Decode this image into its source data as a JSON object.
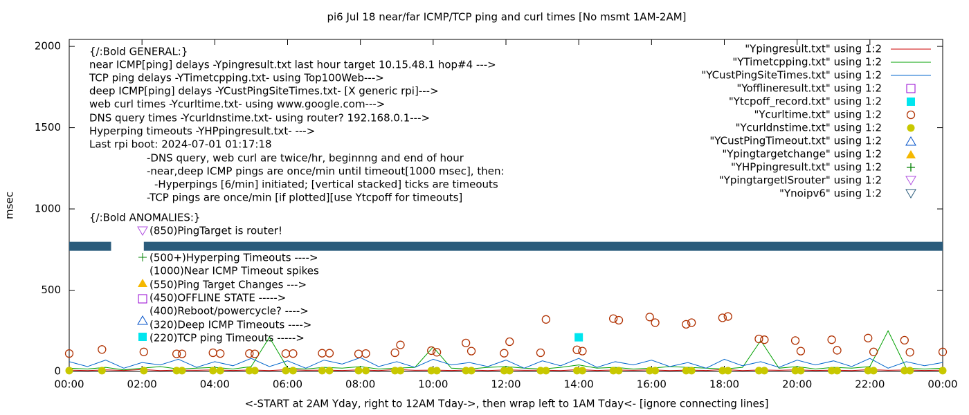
{
  "chart_data": {
    "type": "line",
    "title": "pi6 Jul 18  near/far ICMP/TCP ping and curl times [No msmt 1AM-2AM]",
    "xlabel": "<-START at 2AM Yday, right to 12AM Tday->, then wrap left to 1AM Tday<- [ignore connecting lines]",
    "ylabel": "msec",
    "xlim": [
      0,
      24
    ],
    "ylim": [
      0,
      2043
    ],
    "xticks": [
      {
        "value": 0,
        "label": "00:00"
      },
      {
        "value": 2,
        "label": "02:00"
      },
      {
        "value": 4,
        "label": "04:00"
      },
      {
        "value": 6,
        "label": "06:00"
      },
      {
        "value": 8,
        "label": "08:00"
      },
      {
        "value": 10,
        "label": "10:00"
      },
      {
        "value": 12,
        "label": "12:00"
      },
      {
        "value": 14,
        "label": "14:00"
      },
      {
        "value": 16,
        "label": "16:00"
      },
      {
        "value": 18,
        "label": "18:00"
      },
      {
        "value": 20,
        "label": "20:00"
      },
      {
        "value": 22,
        "label": "22:00"
      },
      {
        "value": 24,
        "label": "00:00"
      }
    ],
    "yticks": [
      0,
      500,
      1000,
      1500,
      2000
    ],
    "x": [
      0,
      0.5,
      1,
      1.5,
      2,
      2.5,
      3,
      3.5,
      4,
      4.5,
      5,
      5.5,
      6,
      6.5,
      7,
      7.5,
      8,
      8.5,
      9,
      9.5,
      10,
      10.5,
      11,
      11.5,
      12,
      12.5,
      13,
      13.5,
      14,
      14.5,
      15,
      15.5,
      16,
      16.5,
      17,
      17.5,
      18,
      18.5,
      19,
      19.5,
      20,
      20.5,
      21,
      21.5,
      22,
      22.5,
      23,
      23.5,
      24
    ],
    "series": [
      {
        "name": "\"Ypingresult.txt\" using 1:2",
        "color": "#cc0000",
        "style": "line",
        "values": [
          8,
          5,
          10,
          6,
          12,
          5,
          8,
          7,
          10,
          6,
          9,
          5,
          11,
          7,
          8,
          6,
          10,
          5,
          12,
          7,
          8,
          6,
          9,
          5,
          10,
          7,
          8,
          5,
          11,
          6,
          9,
          7,
          10,
          5,
          8,
          6,
          12,
          5,
          9,
          7,
          10,
          6,
          8,
          5,
          11,
          7,
          9,
          6,
          8
        ]
      },
      {
        "name": "\"YTimetcpping.txt\" using 1:2",
        "color": "#00a000",
        "style": "line",
        "values": [
          20,
          15,
          25,
          10,
          20,
          30,
          15,
          20,
          25,
          15,
          30,
          210,
          20,
          15,
          25,
          20,
          30,
          15,
          20,
          25,
          150,
          20,
          15,
          25,
          30,
          20,
          15,
          25,
          40,
          20,
          25,
          15,
          20,
          30,
          25,
          20,
          15,
          25,
          190,
          20,
          30,
          15,
          25,
          20,
          30,
          250,
          20,
          15,
          20
        ]
      },
      {
        "name": "\"YCustPingSiteTimes.txt\" using 1:2",
        "color": "#0066cc",
        "style": "line",
        "values": [
          60,
          30,
          70,
          20,
          55,
          40,
          75,
          25,
          60,
          35,
          80,
          30,
          65,
          20,
          70,
          45,
          85,
          30,
          60,
          25,
          75,
          40,
          55,
          30,
          70,
          20,
          65,
          35,
          80,
          25,
          60,
          40,
          70,
          30,
          55,
          20,
          75,
          35,
          60,
          25,
          70,
          40,
          65,
          30,
          80,
          20,
          60,
          35,
          55
        ]
      },
      {
        "name": "\"Yofflineresult.txt\" using 1:2",
        "color": "#9400d3",
        "style": "square-open",
        "x": [],
        "values": []
      },
      {
        "name": "\"Ytcpoff_record.txt\" using 1:2",
        "color": "#00e5ee",
        "style": "square",
        "x": [
          14
        ],
        "values": [
          210
        ]
      },
      {
        "name": "\"Ycurltime.txt\" using 1:2",
        "color": "#b03000",
        "style": "circle-open",
        "x": [
          0,
          0.9,
          2.05,
          2.95,
          3.1,
          3.95,
          4.15,
          4.95,
          5.1,
          5.95,
          6.15,
          6.95,
          7.15,
          7.95,
          8.15,
          8.95,
          9.1,
          9.95,
          10.1,
          10.9,
          11.05,
          11.95,
          12.1,
          12.95,
          13.1,
          13.95,
          14.1,
          14.95,
          15.1,
          15.95,
          16.1,
          16.95,
          17.1,
          17.95,
          18.1,
          18.95,
          19.1,
          19.95,
          20.1,
          20.95,
          21.1,
          21.95,
          22.1,
          22.95,
          23.1,
          24
        ],
        "values": [
          110,
          135,
          120,
          108,
          108,
          115,
          110,
          110,
          108,
          110,
          110,
          112,
          112,
          108,
          110,
          115,
          163,
          128,
          118,
          175,
          125,
          112,
          183,
          115,
          320,
          133,
          125,
          325,
          315,
          335,
          300,
          290,
          300,
          330,
          338,
          200,
          195,
          190,
          125,
          195,
          130,
          205,
          120,
          192,
          118,
          120
        ]
      },
      {
        "name": "\"Ycurldnstime.txt\" using 1:2",
        "color": "#c8c800",
        "style": "circle",
        "x": [
          0,
          0.9,
          2.05,
          2.95,
          3.1,
          3.95,
          4.15,
          4.95,
          5.1,
          5.95,
          6.15,
          6.95,
          7.15,
          7.95,
          8.15,
          8.95,
          9.1,
          9.95,
          10.1,
          10.9,
          11.05,
          11.95,
          12.1,
          12.95,
          13.1,
          13.95,
          14.1,
          14.95,
          15.1,
          15.95,
          16.1,
          16.95,
          17.1,
          17.95,
          18.1,
          18.95,
          19.1,
          19.95,
          20.1,
          20.95,
          21.1,
          21.95,
          22.1,
          22.95,
          23.1,
          24
        ],
        "values": [
          5,
          5,
          5,
          5,
          5,
          5,
          5,
          5,
          5,
          5,
          5,
          5,
          5,
          5,
          5,
          5,
          5,
          5,
          5,
          5,
          5,
          5,
          5,
          5,
          5,
          5,
          5,
          5,
          5,
          5,
          5,
          5,
          5,
          5,
          5,
          5,
          5,
          5,
          5,
          5,
          5,
          5,
          5,
          5,
          5,
          5
        ]
      },
      {
        "name": "\"YCustPingTimeout.txt\" using 1:2",
        "color": "#0050c8",
        "style": "triangle-open",
        "x": [],
        "values": []
      },
      {
        "name": "\"Ypingtargetchange\" using 1:2",
        "color": "#f5b800",
        "style": "triangle",
        "x": [],
        "values": []
      },
      {
        "name": "\"YHPpingresult.txt\" using 1:2",
        "color": "#008000",
        "style": "plus",
        "x": [],
        "values": []
      },
      {
        "name": "\"YpingtargetISrouter\" using 1:2",
        "color": "#b050e0",
        "style": "triangle-down-open",
        "x": [],
        "values": []
      },
      {
        "name": "\"Ynoipv6\" using 1:2",
        "color": "#2b5c7c",
        "style": "band",
        "x": [
          0,
          1.15,
          null,
          2.05,
          24
        ],
        "values": [
          770,
          770,
          null,
          770,
          770
        ]
      }
    ],
    "annotations": [
      "{/:Bold GENERAL:}",
      "near ICMP[ping] delays -Ypingresult.txt last hour target 10.15.48.1 hop#4 --->",
      "TCP ping delays -YTimetcpping.txt- using Top100Web--->",
      "deep ICMP[ping] delays -YCustPingSiteTimes.txt- [X generic rpi]--->",
      "web curl times -Ycurltime.txt- using www.google.com--->",
      "DNS query times -Ycurldnstime.txt- using router? 192.168.0.1--->",
      "Hyperping timeouts -YHPpingresult.txt- --->",
      "Last rpi boot: 2024-07-01 01:17:18",
      "-DNS query, web curl are twice/hr, beginnng and end of hour",
      "-near,deep ICMP pings are once/min until timeout[1000 msec], then:",
      "-Hyperpings [6/min] initiated; [vertical stacked] ticks are timeouts",
      "-TCP pings are once/min [if plotted][use Ytcpoff for timeouts]",
      "{/:Bold ANOMALIES:}",
      "(850)PingTarget is router!",
      "(500+)Hyperping Timeouts ---->",
      "(1000)Near ICMP Timeout spikes",
      "(550)Ping Target Changes --->",
      "(450)OFFLINE STATE ----->",
      "(400)Reboot/powercycle? ---->",
      "(320)Deep ICMP Timeouts ---->",
      "(220)TCP ping Timeouts ----->"
    ]
  }
}
